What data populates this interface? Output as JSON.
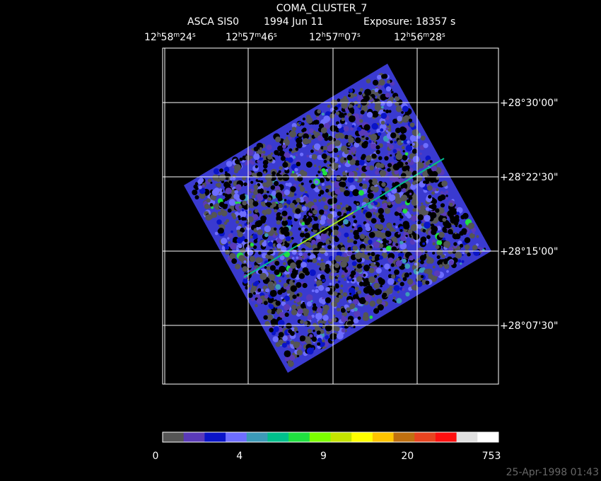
{
  "header": {
    "title": "COMA_CLUSTER_7",
    "instrument": "ASCA SIS0",
    "date": "1994 Jun 11",
    "exposure": "Exposure: 18357 s"
  },
  "ra_labels": [
    "12h58m24s",
    "12h57m46s",
    "12h57m07s",
    "12h56m28s"
  ],
  "dec_labels": [
    "+28°30'00\"",
    "+28°22'30\"",
    "+28°15'00\"",
    "+28°07'30\""
  ],
  "colorbar": {
    "colors": [
      "#555555",
      "#5a3ab8",
      "#0a14c8",
      "#6e6eff",
      "#3c9ab8",
      "#00c08c",
      "#20e040",
      "#7cff00",
      "#c4e400",
      "#ffff00",
      "#ffc400",
      "#c07010",
      "#e84420",
      "#ff1010",
      "#e0e0e0",
      "#ffffff"
    ],
    "labels": [
      "0",
      "4",
      "9",
      "20",
      "753"
    ]
  },
  "timestamp": "25-Apr-1998 01:43"
}
